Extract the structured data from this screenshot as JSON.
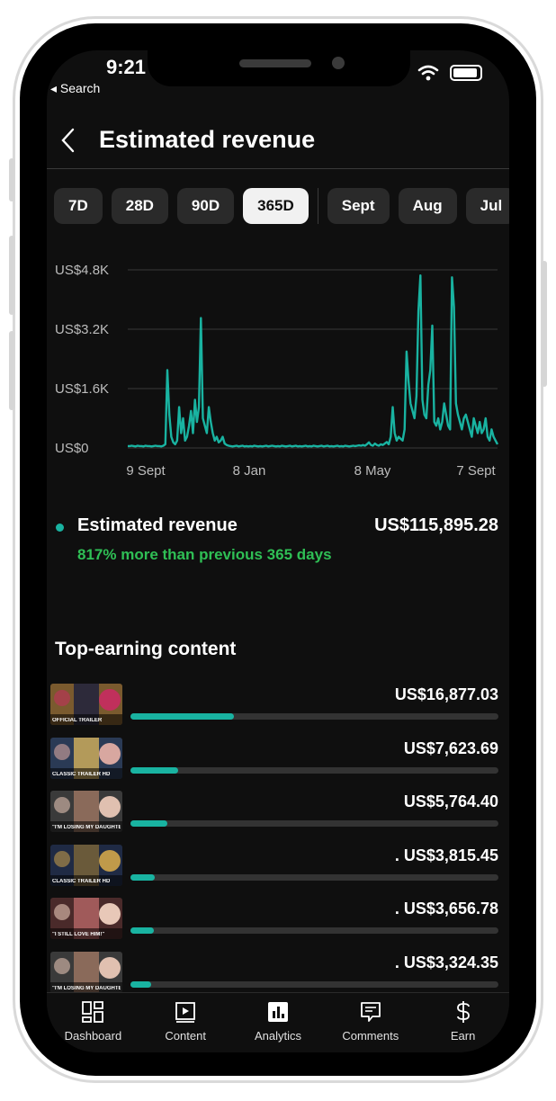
{
  "status": {
    "time": "9:21",
    "back_label": "◂ Search"
  },
  "header": {
    "title": "Estimated revenue"
  },
  "period_chips": [
    {
      "label": "7D",
      "active": false
    },
    {
      "label": "28D",
      "active": false
    },
    {
      "label": "90D",
      "active": false
    },
    {
      "label": "365D",
      "active": true
    },
    {
      "label": "Sept",
      "active": false
    },
    {
      "label": "Aug",
      "active": false
    },
    {
      "label": "Jul",
      "active": false
    }
  ],
  "chart_data": {
    "type": "line",
    "title": "",
    "xlabel": "",
    "ylabel": "",
    "ylim": [
      0,
      4800
    ],
    "y_ticks": [
      "US$4.8K",
      "US$3.2K",
      "US$1.6K",
      "US$0"
    ],
    "x_ticks": [
      "9 Sept",
      "8 Jan",
      "8 May",
      "7 Sept"
    ],
    "grid": true,
    "color": "#19b3a1",
    "series": [
      {
        "values": [
          50,
          50,
          60,
          50,
          40,
          60,
          50,
          50,
          40,
          60,
          50,
          50,
          40,
          50,
          60,
          50,
          50,
          40,
          60,
          100,
          2100,
          900,
          300,
          150,
          100,
          200,
          1100,
          400,
          800,
          200,
          300,
          600,
          1000,
          400,
          1300,
          700,
          1100,
          3500,
          800,
          600,
          400,
          1100,
          700,
          400,
          200,
          300,
          150,
          200,
          300,
          120,
          80,
          60,
          50,
          40,
          50,
          60,
          40,
          50,
          60,
          40,
          50,
          40,
          50,
          40,
          60,
          50,
          40,
          50,
          40,
          50,
          60,
          40,
          50,
          60,
          50,
          40,
          50,
          40,
          60,
          50,
          40,
          50,
          60,
          40,
          50,
          60,
          40,
          50,
          40,
          50,
          60,
          40,
          50,
          40,
          60,
          50,
          40,
          50,
          60,
          40,
          50,
          60,
          40,
          50,
          40,
          50,
          60,
          40,
          50,
          40,
          60,
          50,
          40,
          50,
          60,
          50,
          60,
          70,
          60,
          80,
          60,
          100,
          150,
          80,
          60,
          120,
          80,
          60,
          100,
          80,
          120,
          160,
          100,
          300,
          1100,
          400,
          200,
          300,
          250,
          200,
          500,
          2600,
          1800,
          1200,
          1000,
          800,
          1400,
          3700,
          4650,
          1300,
          900,
          800,
          1700,
          2100,
          3300,
          700,
          600,
          800,
          500,
          700,
          1200,
          900,
          600,
          500,
          4600,
          3800,
          1200,
          900,
          700,
          500,
          800,
          900,
          700,
          500,
          300,
          800,
          600,
          400,
          700,
          400,
          500,
          800,
          300,
          200,
          500,
          300,
          200,
          100
        ],
        "x_range": [
          "9 Sept",
          "7 Sept"
        ]
      }
    ]
  },
  "summary": {
    "label": "Estimated revenue",
    "value": "US$115,895.28",
    "note": "817% more than previous 365 days"
  },
  "top_content": {
    "title": "Top-earning content",
    "items": [
      {
        "value": "US$16,877.03",
        "share": 0.28,
        "thumb_text": "OFFICIAL TRAILER",
        "thumb_colors": [
          "#7a5a2e",
          "#2d2a3a",
          "#c0305c"
        ]
      },
      {
        "value": "US$7,623.69",
        "share": 0.13,
        "thumb_text": "CLASSIC TRAILER HD",
        "thumb_colors": [
          "#2a3a55",
          "#b39a5a",
          "#d8a7a0"
        ]
      },
      {
        "value": "US$5,764.40",
        "share": 0.1,
        "thumb_text": "\"I'M LOSING MY DAUGHTER!\"",
        "thumb_colors": [
          "#3a3a3a",
          "#8a6a5a",
          "#e0c0b0"
        ]
      },
      {
        "value": ". US$3,815.45",
        "share": 0.065,
        "thumb_text": "CLASSIC TRAILER HD",
        "thumb_colors": [
          "#1f2a44",
          "#6a5a3a",
          "#c09a4a"
        ]
      },
      {
        "value": ". US$3,656.78",
        "share": 0.063,
        "thumb_text": "\"I STILL LOVE HIM!\"",
        "thumb_colors": [
          "#4a2a2a",
          "#a05a5a",
          "#e8c8b8"
        ]
      },
      {
        "value": ". US$3,324.35",
        "share": 0.057,
        "thumb_text": "\"I'M LOSING MY DAUGHTER!\"",
        "thumb_colors": [
          "#3a3a3a",
          "#8a6a5a",
          "#e0c0b0"
        ]
      }
    ]
  },
  "tabs": [
    {
      "label": "Dashboard",
      "icon": "dashboard-icon"
    },
    {
      "label": "Content",
      "icon": "content-icon"
    },
    {
      "label": "Analytics",
      "icon": "analytics-icon"
    },
    {
      "label": "Comments",
      "icon": "comments-icon"
    },
    {
      "label": "Earn",
      "icon": "earn-icon"
    }
  ]
}
